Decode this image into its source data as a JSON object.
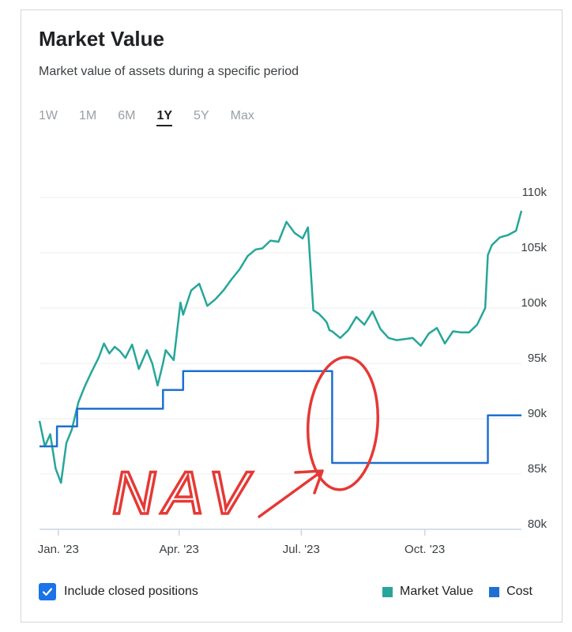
{
  "card": {
    "title": "Market Value",
    "subtitle": "Market value of assets during a specific period"
  },
  "ranges": [
    "1W",
    "1M",
    "6M",
    "1Y",
    "5Y",
    "Max"
  ],
  "active_range": "1Y",
  "controls": {
    "include_closed_label": "Include closed positions",
    "include_closed_checked": true
  },
  "annotation": {
    "text": "NAV",
    "color": "#e53935"
  },
  "colors": {
    "market_value": "#26a69a",
    "cost": "#1e6fd1",
    "grid": "#eeeeee",
    "axis_text": "#3c4043",
    "checkbox": "#1a73e8"
  },
  "chart_data": {
    "type": "line",
    "x_ticks": [
      "Jan. '23",
      "Apr. '23",
      "Jul. '23",
      "Oct. '23"
    ],
    "y_ticks": [
      "110k",
      "105k",
      "100k",
      "95k",
      "90k",
      "85k",
      "80k"
    ],
    "ylim": [
      80000,
      110000
    ],
    "y_axis_position": "right",
    "grid": true,
    "legend": "bottom-right",
    "series": [
      {
        "name": "Market Value",
        "x": [
          "2022-12-18",
          "2022-12-22",
          "2022-12-26",
          "2022-12-30",
          "2023-01-03",
          "2023-01-07",
          "2023-01-11",
          "2023-01-16",
          "2023-01-21",
          "2023-01-26",
          "2023-01-31",
          "2023-02-04",
          "2023-02-08",
          "2023-02-12",
          "2023-02-16",
          "2023-02-20",
          "2023-02-25",
          "2023-03-02",
          "2023-03-08",
          "2023-03-12",
          "2023-03-16",
          "2023-03-20",
          "2023-03-22",
          "2023-03-28",
          "2023-04-02",
          "2023-04-04",
          "2023-04-10",
          "2023-04-16",
          "2023-04-22",
          "2023-04-28",
          "2023-05-04",
          "2023-05-10",
          "2023-05-16",
          "2023-05-22",
          "2023-05-28",
          "2023-06-02",
          "2023-06-08",
          "2023-06-14",
          "2023-06-20",
          "2023-06-26",
          "2023-07-02",
          "2023-07-06",
          "2023-07-10",
          "2023-07-14",
          "2023-07-18",
          "2023-07-20",
          "2023-07-22",
          "2023-07-24",
          "2023-07-30",
          "2023-08-05",
          "2023-08-11",
          "2023-08-17",
          "2023-08-23",
          "2023-08-29",
          "2023-09-04",
          "2023-09-10",
          "2023-09-16",
          "2023-09-22",
          "2023-09-28",
          "2023-10-04",
          "2023-10-10",
          "2023-10-16",
          "2023-10-22",
          "2023-10-28",
          "2023-11-03",
          "2023-11-09",
          "2023-11-15",
          "2023-11-17",
          "2023-11-20",
          "2023-11-26",
          "2023-12-02",
          "2023-12-08",
          "2023-12-12"
        ],
        "y": [
          89800,
          87500,
          88600,
          85500,
          84200,
          87800,
          89000,
          91500,
          93000,
          94300,
          95500,
          96800,
          95900,
          96500,
          96100,
          95500,
          96700,
          94500,
          96200,
          95000,
          93000,
          95000,
          96200,
          95300,
          100500,
          99400,
          101600,
          102200,
          100200,
          100800,
          101600,
          102600,
          103500,
          104700,
          105300,
          105400,
          106100,
          106000,
          107800,
          106800,
          106300,
          107300,
          99800,
          99500,
          99000,
          98700,
          98000,
          97900,
          97300,
          98000,
          99200,
          98500,
          99700,
          98100,
          97300,
          97100,
          97200,
          97300,
          96600,
          97700,
          98200,
          96800,
          97900,
          97800,
          97800,
          98500,
          100000,
          104800,
          105700,
          106400,
          106600,
          107000,
          108800
        ]
      },
      {
        "name": "Cost",
        "x": [
          "2022-12-18",
          "2022-12-31",
          "2022-12-31",
          "2023-01-15",
          "2023-01-15",
          "2023-03-20",
          "2023-03-20",
          "2023-04-04",
          "2023-04-04",
          "2023-07-24",
          "2023-07-24",
          "2023-11-17",
          "2023-11-17",
          "2023-12-12"
        ],
        "y": [
          87500,
          87500,
          89300,
          89300,
          90900,
          90900,
          92600,
          92600,
          94300,
          94300,
          86000,
          86000,
          90300,
          90300
        ]
      }
    ]
  }
}
